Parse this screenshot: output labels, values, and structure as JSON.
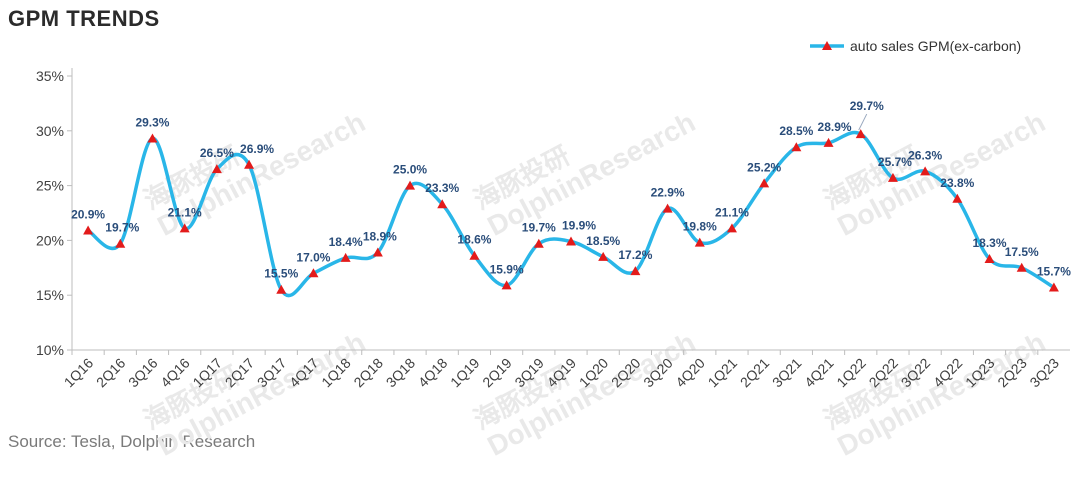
{
  "page": {
    "title": "GPM TRENDS",
    "source": "Source: Tesla, Dolphin Research"
  },
  "watermark": {
    "text_cn": "海豚投研",
    "text_en": "DolphinResearch"
  },
  "chart_data": {
    "type": "line",
    "title": "GPM TRENDS",
    "xlabel": "",
    "ylabel": "",
    "categories": [
      "1Q16",
      "2Q16",
      "3Q16",
      "4Q16",
      "1Q17",
      "2Q17",
      "3Q17",
      "4Q17",
      "1Q18",
      "2Q18",
      "3Q18",
      "4Q18",
      "1Q19",
      "2Q19",
      "3Q19",
      "4Q19",
      "1Q20",
      "2Q20",
      "3Q20",
      "4Q20",
      "1Q21",
      "2Q21",
      "3Q21",
      "4Q21",
      "1Q22",
      "2Q22",
      "3Q22",
      "4Q22",
      "1Q23",
      "2Q23",
      "3Q23"
    ],
    "series": [
      {
        "name": "auto sales GPM(ex-carbon)",
        "values": [
          20.9,
          19.7,
          29.3,
          21.1,
          26.5,
          26.9,
          15.5,
          17.0,
          18.4,
          18.9,
          25.0,
          23.3,
          18.6,
          15.9,
          19.7,
          19.9,
          18.5,
          17.2,
          22.9,
          19.8,
          21.1,
          25.2,
          28.5,
          28.9,
          29.7,
          25.7,
          26.3,
          23.8,
          18.3,
          17.5,
          15.7
        ],
        "labels": [
          "20.9%",
          "19.7%",
          "29.3%",
          "21.1%",
          "26.5%",
          "26.9%",
          "15.5%",
          "17.0%",
          "18.4%",
          "18.9%",
          "25.0%",
          "23.3%",
          "18.6%",
          "15.9%",
          "19.7%",
          "19.9%",
          "18.5%",
          "17.2%",
          "22.9%",
          "19.8%",
          "21.1%",
          "25.2%",
          "28.5%",
          "28.9%",
          "29.7%",
          "25.7%",
          "26.3%",
          "23.8%",
          "18.3%",
          "17.5%",
          "15.7%"
        ],
        "line_color": "#29b6e8",
        "marker_color": "#e31b1b",
        "label_color": "#2a4d7a"
      }
    ],
    "ylim": [
      10,
      35
    ],
    "yticks": [
      10,
      15,
      20,
      25,
      30,
      35
    ],
    "ytick_labels": [
      "10%",
      "15%",
      "20%",
      "25%",
      "30%",
      "35%"
    ],
    "grid": false,
    "legend": "top-right"
  }
}
